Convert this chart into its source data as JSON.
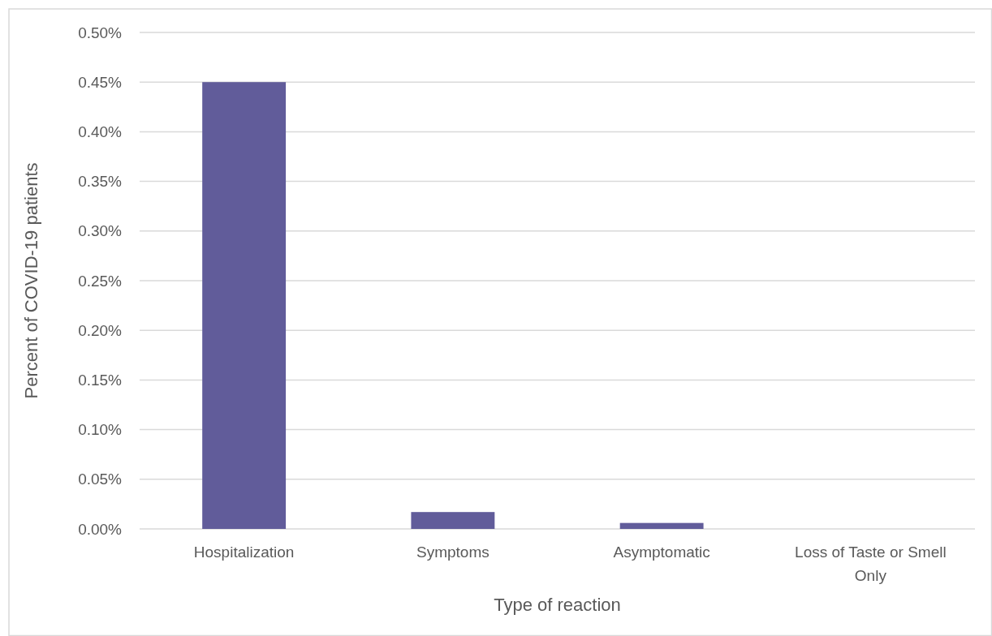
{
  "chart_data": {
    "type": "bar",
    "xlabel": "Type of reaction",
    "ylabel": "Percent of COVID-19 patients",
    "categories": [
      "Hospitalization",
      "Symptoms",
      "Asymptomatic",
      "Loss of Taste or Smell Only"
    ],
    "values": [
      0.45,
      0.017,
      0.006,
      0
    ],
    "color": "#615c9a",
    "ylim": [
      0,
      0.5
    ],
    "yticks": [
      {
        "value": 0,
        "label": "0.00%"
      },
      {
        "value": 0.05,
        "label": "0.05%"
      },
      {
        "value": 0.1,
        "label": "0.10%"
      },
      {
        "value": 0.15,
        "label": "0.15%"
      },
      {
        "value": 0.2,
        "label": "0.20%"
      },
      {
        "value": 0.25,
        "label": "0.25%"
      },
      {
        "value": 0.3,
        "label": "0.30%"
      },
      {
        "value": 0.35,
        "label": "0.35%"
      },
      {
        "value": 0.4,
        "label": "0.40%"
      },
      {
        "value": 0.45,
        "label": "0.45%"
      },
      {
        "value": 0.5,
        "label": "0.50%"
      }
    ],
    "grid": "y"
  }
}
